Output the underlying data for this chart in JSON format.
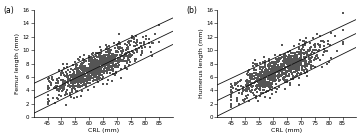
{
  "panel_a": {
    "label": "(a)",
    "xlabel": "CRL (mm)",
    "ylabel": "Femur length (mm)",
    "xlim": [
      40,
      90
    ],
    "ylim": [
      0,
      16
    ],
    "xticks": [
      45,
      50,
      55,
      60,
      65,
      70,
      75,
      80,
      85
    ],
    "yticks": [
      0,
      2,
      4,
      6,
      8,
      10,
      12,
      14,
      16
    ],
    "line_mean": {
      "x0": 45,
      "y0": 3.8,
      "x1": 85,
      "y1": 11.8
    },
    "line_upper": {
      "x0": 45,
      "y0": 6.0,
      "x1": 85,
      "y1": 13.8
    },
    "line_lower": {
      "x0": 45,
      "y0": 1.6,
      "x1": 85,
      "y1": 9.8
    },
    "seed": 42,
    "n_points": 900
  },
  "panel_b": {
    "label": "(b)",
    "xlabel": "CRL (mm)",
    "ylabel": "Humerus length (mm)",
    "xlim": [
      40,
      90
    ],
    "ylim": [
      0,
      16
    ],
    "xticks": [
      45,
      50,
      55,
      60,
      65,
      70,
      75,
      80,
      85
    ],
    "yticks": [
      0,
      2,
      4,
      6,
      8,
      10,
      12,
      14,
      16
    ],
    "line_mean": {
      "x0": 45,
      "y0": 3.5,
      "x1": 85,
      "y1": 11.5
    },
    "line_upper": {
      "x0": 45,
      "y0": 5.8,
      "x1": 85,
      "y1": 13.6
    },
    "line_lower": {
      "x0": 45,
      "y0": 1.2,
      "x1": 85,
      "y1": 9.4
    },
    "seed": 99,
    "n_points": 900
  },
  "scatter_color": "#555555",
  "line_color": "#111111",
  "marker_size": 0.8,
  "line_width": 0.6
}
